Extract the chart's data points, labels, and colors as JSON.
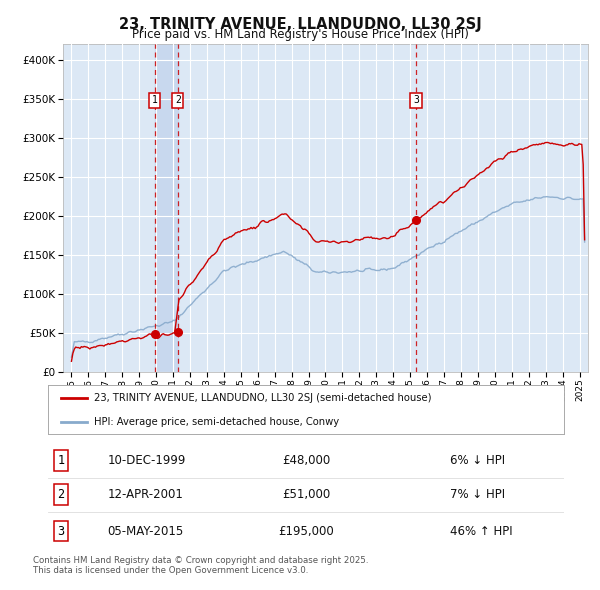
{
  "title_line1": "23, TRINITY AVENUE, LLANDUDNO, LL30 2SJ",
  "title_line2": "Price paid vs. HM Land Registry's House Price Index (HPI)",
  "legend_label_red": "23, TRINITY AVENUE, LLANDUDNO, LL30 2SJ (semi-detached house)",
  "legend_label_blue": "HPI: Average price, semi-detached house, Conwy",
  "transactions": [
    {
      "label": "1",
      "date": "10-DEC-1999",
      "price": 48000,
      "pct": "6% ↓ HPI",
      "x_year": 1999.92
    },
    {
      "label": "2",
      "date": "12-APR-2001",
      "price": 51000,
      "pct": "7% ↓ HPI",
      "x_year": 2001.28
    },
    {
      "label": "3",
      "date": "05-MAY-2015",
      "price": 195000,
      "pct": "46% ↑ HPI",
      "x_year": 2015.35
    }
  ],
  "footer": "Contains HM Land Registry data © Crown copyright and database right 2025.\nThis data is licensed under the Open Government Licence v3.0.",
  "ylim": [
    0,
    420000
  ],
  "xlim": [
    1994.5,
    2025.5
  ],
  "background_color": "#ffffff",
  "plot_bg_color": "#dce8f5",
  "grid_color": "#ffffff",
  "shade_color": "#c8d8ee",
  "red_color": "#cc0000",
  "blue_color": "#88aacc"
}
